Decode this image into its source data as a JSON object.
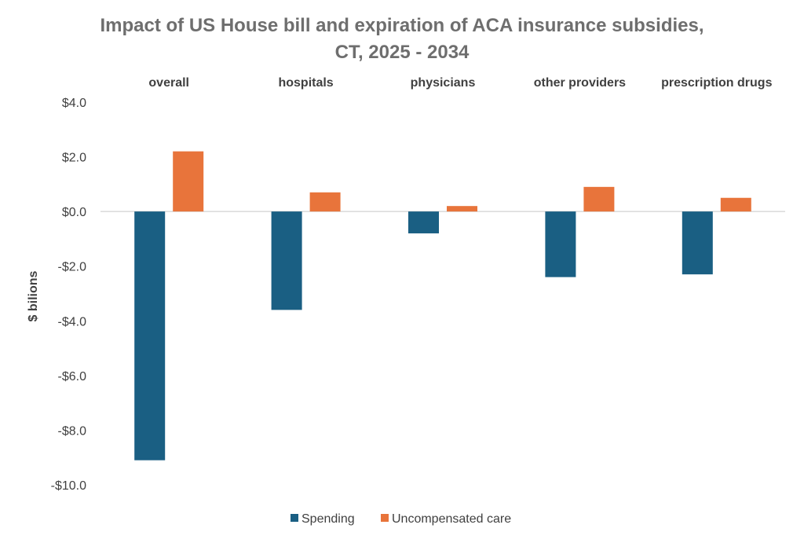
{
  "chart_data": {
    "type": "bar",
    "title": [
      "Impact of US House bill and expiration of ACA insurance subsidies,",
      "CT, 2025 - 2034"
    ],
    "categories": [
      "overall",
      "hospitals",
      "physicians",
      "other providers",
      "prescription drugs"
    ],
    "series": [
      {
        "name": "Spending",
        "color": "#1a5f83",
        "values": [
          -9.1,
          -3.6,
          -0.8,
          -2.4,
          -2.3
        ]
      },
      {
        "name": "Uncompensated care",
        "color": "#e8743b",
        "values": [
          2.2,
          0.7,
          0.2,
          0.9,
          0.5
        ]
      }
    ],
    "ylabel": "$ bilions",
    "ylim": [
      -10,
      4
    ],
    "yticks": [
      4,
      2,
      0,
      -2,
      -4,
      -6,
      -8,
      -10
    ],
    "ytick_labels": [
      "$4.0",
      "$2.0",
      "$0.0",
      "-$2.0",
      "-$4.0",
      "-$6.0",
      "-$8.0",
      "-$10.0"
    ],
    "grid": false,
    "legend": "bottom",
    "category_labels_position": "top"
  }
}
